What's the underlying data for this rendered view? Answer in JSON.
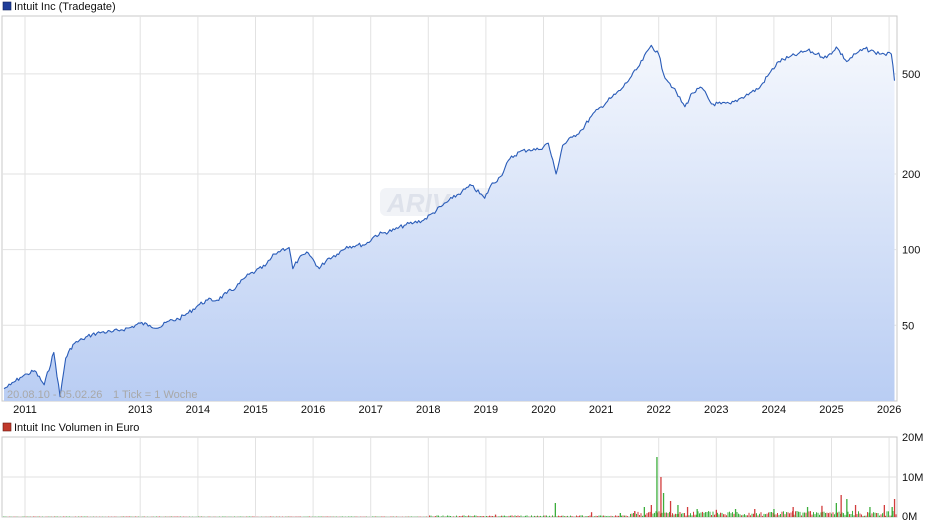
{
  "price_chart": {
    "legend_label": "Intuit Inc (Tradegate)",
    "legend_color": "#1f3d99",
    "line_color": "#2a5cb8",
    "fill_top_color": "#f4f7fd",
    "fill_bottom_color": "#b9cdf3",
    "range_label": "20.08.10 - 05.02.26",
    "tick_label": "1 Tick = 1 Woche",
    "watermark": "ARIVA.DE"
  },
  "volume_chart": {
    "legend_label": "Intuit Inc Volumen in Euro",
    "legend_color": "#c0392b",
    "up_color": "#3cae3c",
    "down_color": "#d23c3c"
  },
  "chart_data": [
    {
      "type": "area",
      "series": [
        {
          "name": "Intuit Inc (Tradegate)",
          "x": [
            "2010-08-20",
            "2010-10-01",
            "2010-12-01",
            "2011-01-15",
            "2011-03-01",
            "2011-05-01",
            "2011-07-01",
            "2011-08-10",
            "2011-09-15",
            "2011-11-01",
            "2012-01-01",
            "2012-03-01",
            "2012-05-01",
            "2012-07-01",
            "2012-09-01",
            "2012-11-01",
            "2013-01-01",
            "2013-03-01",
            "2013-05-01",
            "2013-07-01",
            "2013-09-01",
            "2013-11-01",
            "2014-01-01",
            "2014-03-01",
            "2014-05-01",
            "2014-07-01",
            "2014-09-01",
            "2014-11-01",
            "2015-01-01",
            "2015-03-01",
            "2015-05-01",
            "2015-06-15",
            "2015-08-01",
            "2015-08-25",
            "2015-10-01",
            "2015-12-01",
            "2016-02-10",
            "2016-04-01",
            "2016-06-01",
            "2016-08-01",
            "2016-10-01",
            "2016-12-01",
            "2017-02-01",
            "2017-04-01",
            "2017-06-01",
            "2017-08-01",
            "2017-10-01",
            "2017-12-01",
            "2018-02-01",
            "2018-04-01",
            "2018-06-01",
            "2018-08-01",
            "2018-10-01",
            "2018-12-24",
            "2019-02-01",
            "2019-04-01",
            "2019-06-01",
            "2019-08-01",
            "2019-10-01",
            "2019-12-01",
            "2020-02-01",
            "2020-03-20",
            "2020-05-01",
            "2020-07-01",
            "2020-09-01",
            "2020-11-01",
            "2021-01-01",
            "2021-03-01",
            "2021-05-01",
            "2021-07-01",
            "2021-09-01",
            "2021-11-15",
            "2021-12-31",
            "2022-02-01",
            "2022-04-01",
            "2022-06-15",
            "2022-08-01",
            "2022-10-01",
            "2022-12-01",
            "2023-02-01",
            "2023-04-01",
            "2023-06-01",
            "2023-08-01",
            "2023-10-01",
            "2023-12-01",
            "2024-02-01",
            "2024-04-01",
            "2024-06-01",
            "2024-08-01",
            "2024-10-01",
            "2024-12-01",
            "2025-02-01",
            "2025-04-07",
            "2025-06-01",
            "2025-08-01",
            "2025-10-01",
            "2025-12-01",
            "2026-01-15",
            "2026-02-05"
          ],
          "values": [
            28,
            29,
            31,
            32,
            33,
            29,
            39,
            26,
            37,
            42,
            44,
            46,
            47,
            47,
            48,
            49,
            51,
            50,
            49,
            52,
            53,
            56,
            60,
            63,
            63,
            67,
            71,
            78,
            82,
            86,
            96,
            100,
            102,
            84,
            92,
            97,
            84,
            92,
            96,
            103,
            104,
            105,
            114,
            117,
            120,
            125,
            128,
            131,
            140,
            150,
            160,
            170,
            180,
            160,
            180,
            195,
            230,
            245,
            250,
            250,
            265,
            200,
            260,
            280,
            300,
            340,
            370,
            400,
            430,
            480,
            540,
            650,
            600,
            500,
            440,
            370,
            420,
            440,
            380,
            380,
            380,
            400,
            420,
            440,
            500,
            560,
            580,
            600,
            620,
            600,
            580,
            640,
            560,
            600,
            630,
            610,
            600,
            600,
            470
          ]
        }
      ],
      "y_ticks": [
        50,
        100,
        200,
        500
      ],
      "x_ticks": [
        "2011",
        "2013",
        "2014",
        "2015",
        "2016",
        "2017",
        "2018",
        "2019",
        "2020",
        "2021",
        "2022",
        "2023",
        "2024",
        "2025",
        "2026"
      ],
      "yscale": "log",
      "ylim": [
        25,
        850
      ],
      "grid": true
    },
    {
      "type": "bar",
      "series": [
        {
          "name": "Intuit Inc Volumen in Euro",
          "x": [
            "2019-03-01",
            "2020-03-15",
            "2020-11-01",
            "2021-05-01",
            "2021-08-01",
            "2021-10-01",
            "2021-11-15",
            "2021-12-20",
            "2022-01-15",
            "2022-02-01",
            "2022-03-15",
            "2022-05-01",
            "2022-07-01",
            "2022-09-01",
            "2023-01-01",
            "2023-05-01",
            "2023-09-01",
            "2024-01-01",
            "2024-05-01",
            "2024-08-01",
            "2024-11-01",
            "2025-02-01",
            "2025-03-01",
            "2025-04-07",
            "2025-06-01",
            "2025-09-01",
            "2025-12-01",
            "2026-01-20",
            "2026-02-05"
          ],
          "values": [
            0.6,
            3.5,
            1.2,
            1.0,
            1.5,
            2.5,
            3.0,
            15.0,
            10.0,
            6.0,
            4.0,
            3.0,
            2.5,
            2.0,
            1.8,
            2.0,
            2.0,
            2.0,
            2.5,
            2.5,
            2.8,
            3.5,
            5.5,
            4.5,
            3.0,
            2.5,
            3.0,
            2.5,
            4.5
          ]
        }
      ],
      "y_ticks": [
        "0M",
        "10M",
        "20M"
      ],
      "ylim": [
        0,
        20
      ],
      "grid": true
    }
  ]
}
